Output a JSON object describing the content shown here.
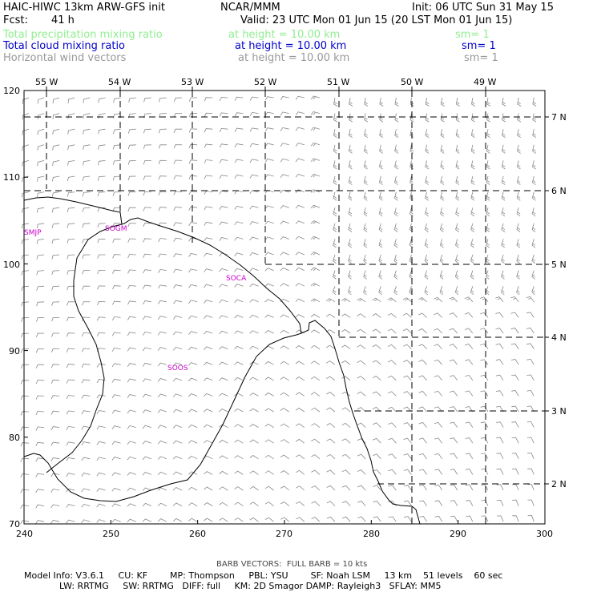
{
  "header": {
    "model_title": "HAIC-HIWC 13km ARW-GFS init",
    "org": "NCAR/MMM",
    "init": "Init: 06 UTC Sun 31 May 15",
    "fcst_label": "Fcst:",
    "fcst_value": "41 h",
    "valid": "Valid: 23 UTC Mon 01 Jun 15 (20 LST Mon 01 Jun 15)",
    "fields": [
      {
        "name": "Total precipitation mixing ratio",
        "level": "at height = 10.00 km",
        "sm": "sm= 1",
        "color": "#90ee90"
      },
      {
        "name": "Total cloud mixing ratio",
        "level": "at height = 10.00 km",
        "sm": "sm= 1",
        "color": "#0000cc"
      },
      {
        "name": "Horizontal wind vectors",
        "level": "at height = 10.00 km",
        "sm": "sm= 1",
        "color": "#999999"
      }
    ]
  },
  "map": {
    "top_lon_labels": [
      "55 W",
      "54 W",
      "53 W",
      "52 W",
      "51 W",
      "50 W",
      "49 W"
    ],
    "right_lat_labels": [
      "7 N",
      "6 N",
      "5 N",
      "4 N",
      "3 N",
      "2 N"
    ],
    "left_axis_labels": [
      "120",
      "110",
      "100",
      "90",
      "80",
      "70"
    ],
    "bottom_axis_labels": [
      "240",
      "250",
      "260",
      "270",
      "280",
      "290",
      "300"
    ],
    "stations": [
      "SMJP",
      "SOGM",
      "SOCA",
      "SOOS"
    ],
    "station_color": "#cc00cc",
    "barb_color": "#888888",
    "coast_color": "#000000"
  },
  "footer": {
    "barb_note": "BARB VECTORS:  FULL BARB = 10 kts",
    "line1": "Model Info: V3.6.1     CU: KF        MP: Thompson     PBL: YSU        SF: Noah LSM     13 km    51 levels    60 sec",
    "line2": "LW: RRTMG     SW: RRTMG   DIFF: full     KM: 2D Smagor DAMP: Rayleigh3   SFLAY: MM5"
  }
}
